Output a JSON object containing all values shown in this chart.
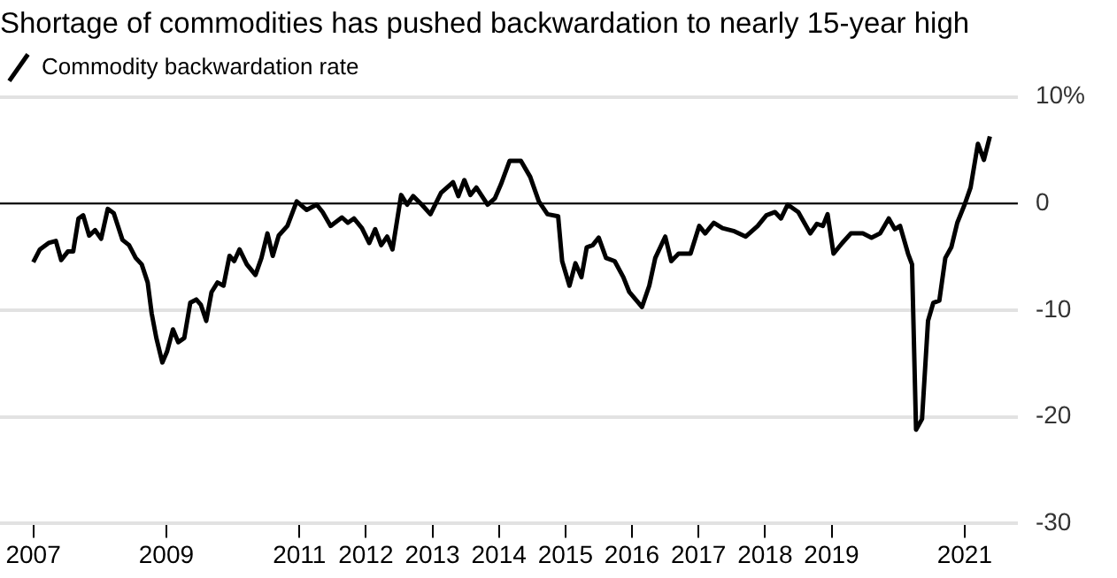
{
  "chart_data": {
    "type": "line",
    "title": "Shortage of commodities has pushed backwardation to nearly 15-year high",
    "series": [
      {
        "name": "Commodity backwardation rate",
        "color": "#000000",
        "x": [
          2007.0,
          2007.1,
          2007.23,
          2007.34,
          2007.42,
          2007.52,
          2007.6,
          2007.68,
          2007.75,
          2007.84,
          2007.93,
          2008.02,
          2008.12,
          2008.21,
          2008.34,
          2008.44,
          2008.54,
          2008.63,
          2008.72,
          2008.78,
          2008.85,
          2008.94,
          2009.01,
          2009.1,
          2009.18,
          2009.27,
          2009.36,
          2009.45,
          2009.52,
          2009.6,
          2009.68,
          2009.77,
          2009.86,
          2009.95,
          2010.02,
          2010.1,
          2010.21,
          2010.34,
          2010.43,
          2010.52,
          2010.6,
          2010.69,
          2010.82,
          2010.96,
          2011.11,
          2011.26,
          2011.35,
          2011.47,
          2011.64,
          2011.73,
          2011.82,
          2011.94,
          2012.05,
          2012.14,
          2012.23,
          2012.32,
          2012.4,
          2012.53,
          2012.62,
          2012.71,
          2012.84,
          2012.97,
          2013.13,
          2013.31,
          2013.39,
          2013.48,
          2013.57,
          2013.66,
          2013.83,
          2013.94,
          2014.03,
          2014.16,
          2014.33,
          2014.47,
          2014.6,
          2014.73,
          2014.89,
          2014.95,
          2015.06,
          2015.15,
          2015.24,
          2015.32,
          2015.41,
          2015.5,
          2015.61,
          2015.74,
          2015.87,
          2015.96,
          2016.15,
          2016.26,
          2016.35,
          2016.5,
          2016.59,
          2016.7,
          2016.88,
          2017.01,
          2017.1,
          2017.23,
          2017.36,
          2017.54,
          2017.71,
          2017.89,
          2018.02,
          2018.15,
          2018.24,
          2018.34,
          2018.5,
          2018.68,
          2018.78,
          2018.87,
          2018.94,
          2019.03,
          2019.16,
          2019.29,
          2019.47,
          2019.6,
          2019.73,
          2019.86,
          2019.95,
          2020.03,
          2020.15,
          2020.21,
          2020.27,
          2020.36,
          2020.45,
          2020.53,
          2020.62,
          2020.71,
          2020.8,
          2020.89,
          2021.0,
          2021.09,
          2021.2,
          2021.29,
          2021.38
        ],
        "values": [
          -5.5,
          -4.3,
          -3.7,
          -3.5,
          -5.3,
          -4.5,
          -4.5,
          -1.4,
          -1.1,
          -3.0,
          -2.5,
          -3.3,
          -0.5,
          -0.9,
          -3.4,
          -3.9,
          -5.1,
          -5.7,
          -7.4,
          -10.3,
          -12.6,
          -14.9,
          -13.9,
          -11.8,
          -13.0,
          -12.6,
          -9.3,
          -9.0,
          -9.5,
          -11.0,
          -8.3,
          -7.4,
          -7.7,
          -4.9,
          -5.4,
          -4.3,
          -5.7,
          -6.7,
          -5.1,
          -2.8,
          -4.9,
          -3.0,
          -2.1,
          0.2,
          -0.6,
          -0.1,
          -0.8,
          -2.1,
          -1.3,
          -1.8,
          -1.4,
          -2.3,
          -3.7,
          -2.4,
          -3.9,
          -3.1,
          -4.3,
          0.8,
          -0.1,
          0.7,
          -0.1,
          -1.0,
          1.0,
          2.0,
          0.7,
          2.2,
          0.8,
          1.5,
          -0.1,
          0.5,
          1.8,
          4.0,
          4.0,
          2.5,
          0.2,
          -1.0,
          -1.2,
          -5.4,
          -7.7,
          -5.6,
          -6.9,
          -4.1,
          -3.9,
          -3.2,
          -5.1,
          -5.4,
          -6.9,
          -8.3,
          -9.7,
          -7.7,
          -5.1,
          -3.1,
          -5.4,
          -4.7,
          -4.7,
          -2.1,
          -2.8,
          -1.8,
          -2.3,
          -2.6,
          -3.1,
          -2.1,
          -1.1,
          -0.8,
          -1.4,
          -0.1,
          -0.8,
          -2.8,
          -1.9,
          -2.1,
          -1.0,
          -4.7,
          -3.7,
          -2.8,
          -2.8,
          -3.2,
          -2.8,
          -1.4,
          -2.4,
          -2.1,
          -4.7,
          -5.7,
          -21.2,
          -20.2,
          -11.0,
          -9.3,
          -9.1,
          -5.1,
          -4.1,
          -1.8,
          -0.1,
          1.5,
          5.6,
          4.1,
          6.3
        ]
      }
    ],
    "xlim": [
      2006.5,
      2021.8
    ],
    "xticks": [
      2007,
      2009,
      2011,
      2012,
      2013,
      2014,
      2015,
      2016,
      2017,
      2018,
      2019,
      2021
    ],
    "ylim": [
      -30,
      10
    ],
    "yticks": [
      -30,
      -20,
      -10,
      0,
      {
        "value": 10,
        "label": "10%"
      }
    ],
    "ref_lines": [
      {
        "axis": "y",
        "value": 0,
        "color": "#000000"
      }
    ],
    "grid": "y",
    "legend": "top left",
    "marker": "none",
    "line_style": "solid"
  }
}
